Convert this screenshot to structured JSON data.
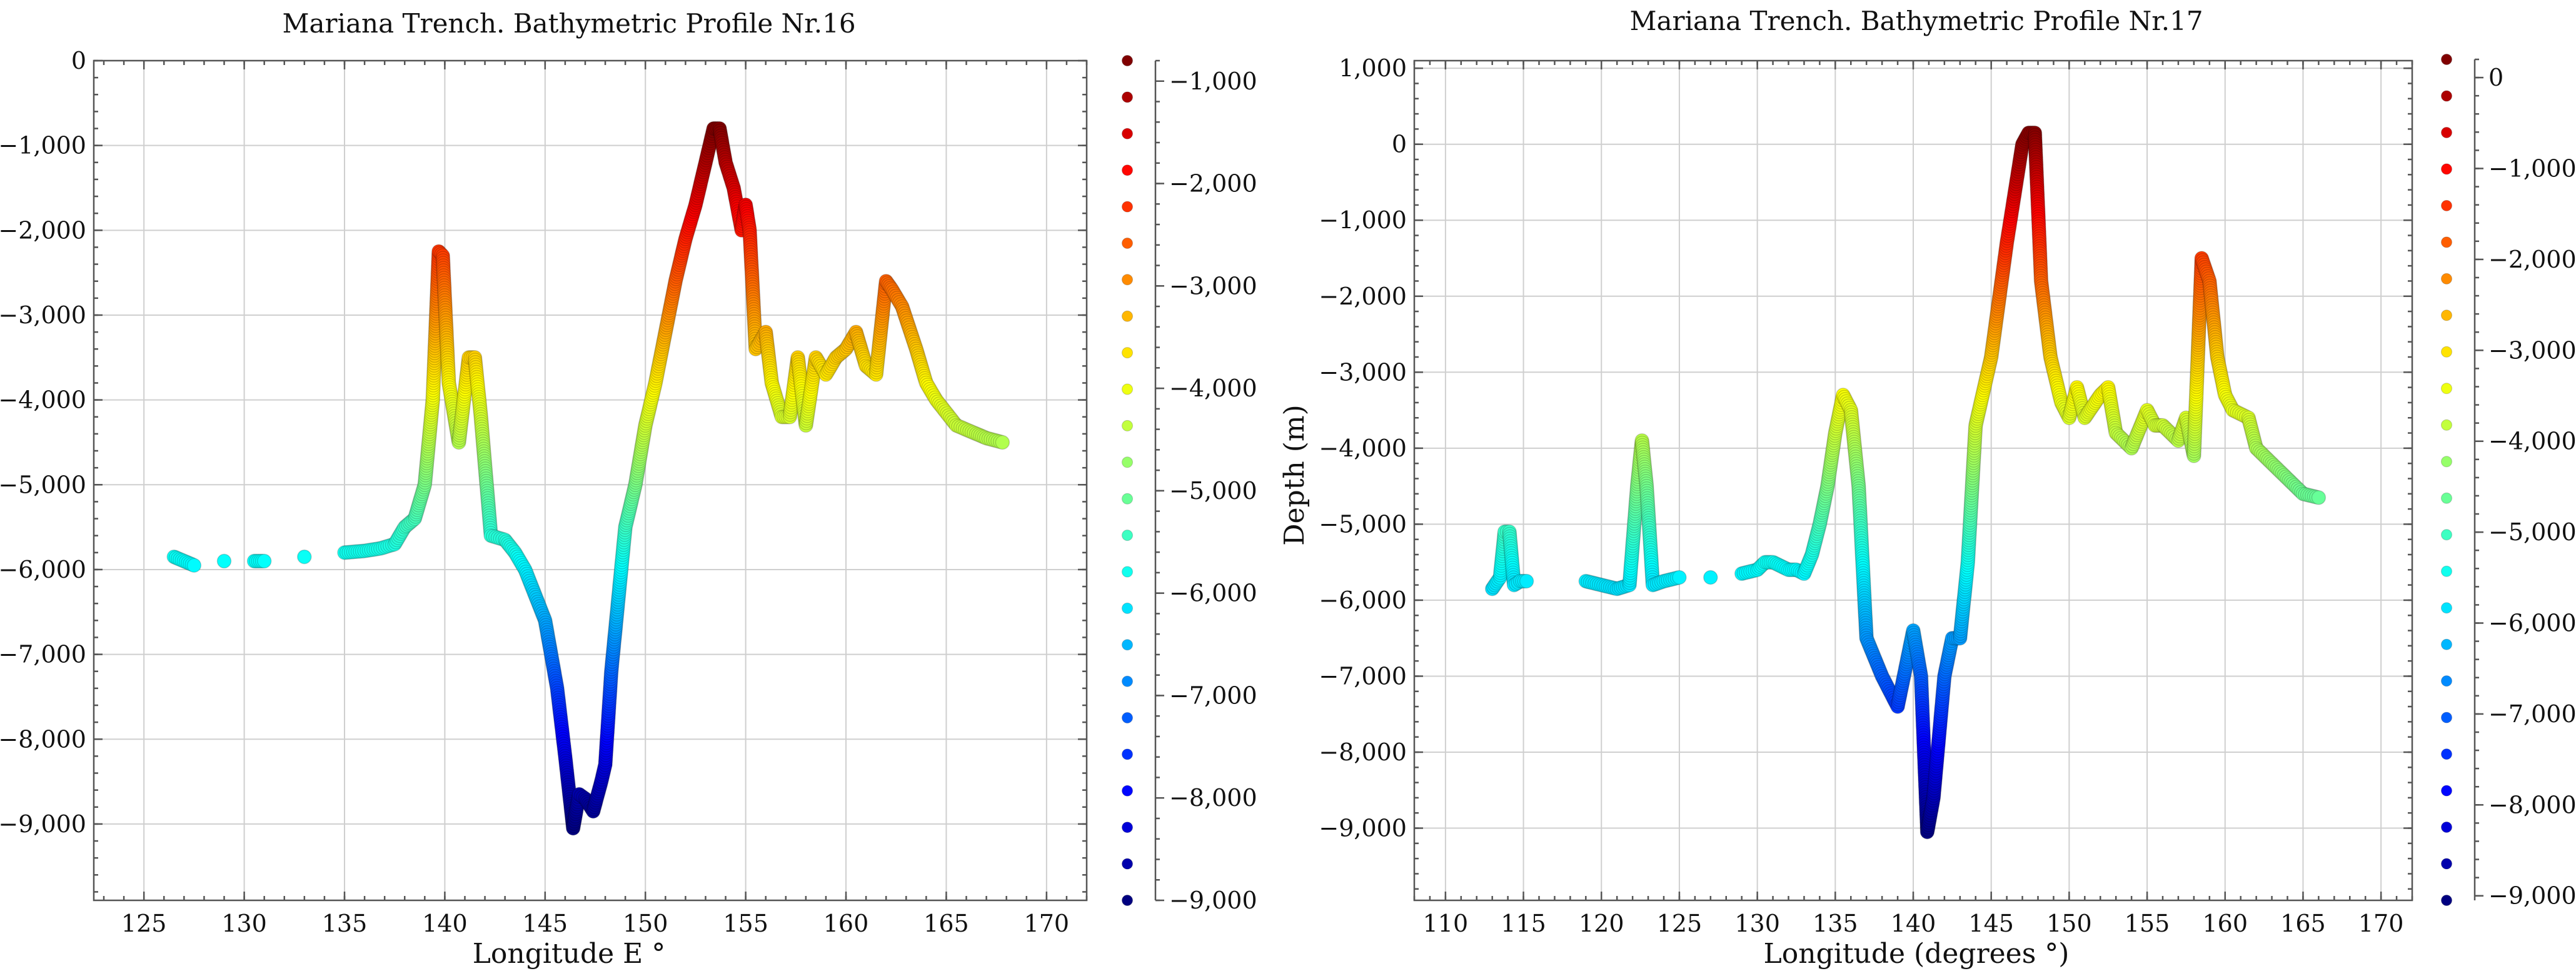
{
  "chart_data": [
    {
      "type": "scatter",
      "title": "Mariana Trench. Bathymetric Profile Nr.16",
      "xlabel": "Longitude E °",
      "ylabel": "",
      "xlim": [
        122.5,
        172
      ],
      "ylim": [
        -9900,
        0
      ],
      "xticks": [
        125,
        130,
        135,
        140,
        145,
        150,
        155,
        160,
        165,
        170
      ],
      "yticks": [
        0,
        -1000,
        -2000,
        -3000,
        -4000,
        -5000,
        -6000,
        -7000,
        -8000,
        -9000
      ],
      "xtick_labels": [
        "125",
        "130",
        "135",
        "140",
        "145",
        "150",
        "155",
        "160",
        "165",
        "170"
      ],
      "ytick_labels": [
        "0",
        "−1,000",
        "−2,000",
        "−3,000",
        "−4,000",
        "−5,000",
        "−6,000",
        "−7,000",
        "−8,000",
        "−9,000"
      ],
      "grid": true,
      "colormap": "jet",
      "colorbar": {
        "range": [
          -9000,
          -800
        ],
        "ticks": [
          -1000,
          -2000,
          -3000,
          -4000,
          -5000,
          -6000,
          -7000,
          -8000,
          -9000
        ],
        "tick_labels": [
          "−1,000",
          "−2,000",
          "−3,000",
          "−4,000",
          "−5,000",
          "−6,000",
          "−7,000",
          "−8,000",
          "−9,000"
        ]
      },
      "x": [
        126.5,
        127,
        127.5,
        129,
        130.5,
        131,
        133,
        135,
        136,
        136.8,
        137.5,
        138,
        138.5,
        139,
        139.4,
        139.7,
        139.9,
        140.2,
        140.7,
        141.2,
        141.5,
        141.8,
        142.3,
        143,
        143.5,
        144,
        145,
        145.6,
        146,
        146.4,
        146.7,
        147,
        147.4,
        147.8,
        148,
        148.3,
        149,
        149.5,
        150,
        150.5,
        151,
        151.5,
        152,
        152.5,
        153,
        153.4,
        153.7,
        154,
        154.4,
        154.8,
        155,
        155.2,
        155.5,
        156,
        156.3,
        156.8,
        157.2,
        157.6,
        158,
        158.5,
        159,
        159.5,
        160,
        160.5,
        161,
        161.5,
        162,
        162.3,
        162.8,
        163.5,
        164,
        164.5,
        165.5,
        166.5,
        167,
        167.8
      ],
      "y": [
        -5850,
        -5900,
        -5950,
        -5900,
        -5900,
        -5900,
        -5850,
        -5800,
        -5780,
        -5750,
        -5700,
        -5500,
        -5400,
        -5000,
        -4000,
        -2250,
        -2300,
        -3800,
        -4500,
        -3500,
        -3500,
        -4200,
        -5600,
        -5650,
        -5800,
        -6000,
        -6600,
        -7400,
        -8200,
        -9050,
        -8650,
        -8700,
        -8850,
        -8500,
        -8300,
        -7200,
        -5500,
        -5000,
        -4300,
        -3800,
        -3200,
        -2600,
        -2100,
        -1700,
        -1200,
        -800,
        -800,
        -1200,
        -1500,
        -2000,
        -1700,
        -2000,
        -3400,
        -3200,
        -3800,
        -4200,
        -4200,
        -3500,
        -4300,
        -3500,
        -3700,
        -3500,
        -3400,
        -3200,
        -3600,
        -3700,
        -2600,
        -2700,
        -2900,
        -3400,
        -3800,
        -4000,
        -4300,
        -4400,
        -4450,
        -4500
      ]
    },
    {
      "type": "scatter",
      "title": "Mariana Trench. Bathymetric Profile Nr.17",
      "xlabel": "Longitude (degrees °)",
      "ylabel": "Depth (m)",
      "xlim": [
        108,
        172
      ],
      "ylim": [
        -9950,
        1100
      ],
      "xticks": [
        110,
        115,
        120,
        125,
        130,
        135,
        140,
        145,
        150,
        155,
        160,
        165,
        170
      ],
      "yticks": [
        1000,
        0,
        -1000,
        -2000,
        -3000,
        -4000,
        -5000,
        -6000,
        -7000,
        -8000,
        -9000
      ],
      "xtick_labels": [
        "110",
        "115",
        "120",
        "125",
        "130",
        "135",
        "140",
        "145",
        "150",
        "155",
        "160",
        "165",
        "170"
      ],
      "ytick_labels": [
        "1,000",
        "0",
        "−1,000",
        "−2,000",
        "−3,000",
        "−4,000",
        "−5,000",
        "−6,000",
        "−7,000",
        "−8,000",
        "−9,000"
      ],
      "grid": true,
      "colormap": "jet",
      "colorbar": {
        "range": [
          -9050,
          200
        ],
        "ticks": [
          0,
          -1000,
          -2000,
          -3000,
          -4000,
          -5000,
          -6000,
          -7000,
          -8000,
          -9000
        ],
        "tick_labels": [
          "0",
          "−1,000",
          "−2,000",
          "−3,000",
          "−4,000",
          "−5,000",
          "−6,000",
          "−7,000",
          "−8,000",
          "−9,000"
        ]
      },
      "x": [
        113,
        113.5,
        113.8,
        114.1,
        114.4,
        114.8,
        115.2,
        119,
        120,
        121,
        121.8,
        122.3,
        122.6,
        122.9,
        123.3,
        124,
        125,
        127,
        129,
        130,
        130.5,
        131,
        131.5,
        132,
        132.5,
        133,
        133.5,
        134,
        134.5,
        135,
        135.5,
        136,
        136.5,
        137,
        138,
        139,
        139.5,
        140,
        140.5,
        140.9,
        141.3,
        142,
        142.5,
        143,
        143.5,
        144,
        145,
        146,
        147,
        147.4,
        147.8,
        148.2,
        148.8,
        149.5,
        150,
        150.5,
        151,
        152,
        152.5,
        153,
        154,
        155,
        155.5,
        156,
        157,
        157.5,
        158,
        158.5,
        159,
        159.5,
        160,
        160.5,
        161.5,
        162,
        163,
        164,
        165,
        166
      ],
      "y": [
        -5850,
        -5700,
        -5100,
        -5100,
        -5800,
        -5750,
        -5750,
        -5750,
        -5800,
        -5850,
        -5800,
        -4500,
        -3900,
        -4500,
        -5800,
        -5750,
        -5700,
        -5700,
        -5650,
        -5600,
        -5500,
        -5500,
        -5550,
        -5600,
        -5600,
        -5650,
        -5400,
        -5000,
        -4500,
        -3800,
        -3300,
        -3500,
        -4500,
        -6500,
        -7000,
        -7400,
        -6900,
        -6400,
        -7000,
        -9050,
        -8600,
        -7000,
        -6500,
        -6500,
        -5500,
        -3700,
        -2800,
        -1300,
        0,
        150,
        150,
        -1800,
        -2800,
        -3400,
        -3600,
        -3200,
        -3600,
        -3300,
        -3200,
        -3800,
        -4000,
        -3500,
        -3700,
        -3700,
        -3900,
        -3600,
        -4100,
        -1500,
        -1800,
        -2800,
        -3300,
        -3500,
        -3600,
        -4000,
        -4200,
        -4400,
        -4600,
        -4650
      ]
    }
  ]
}
